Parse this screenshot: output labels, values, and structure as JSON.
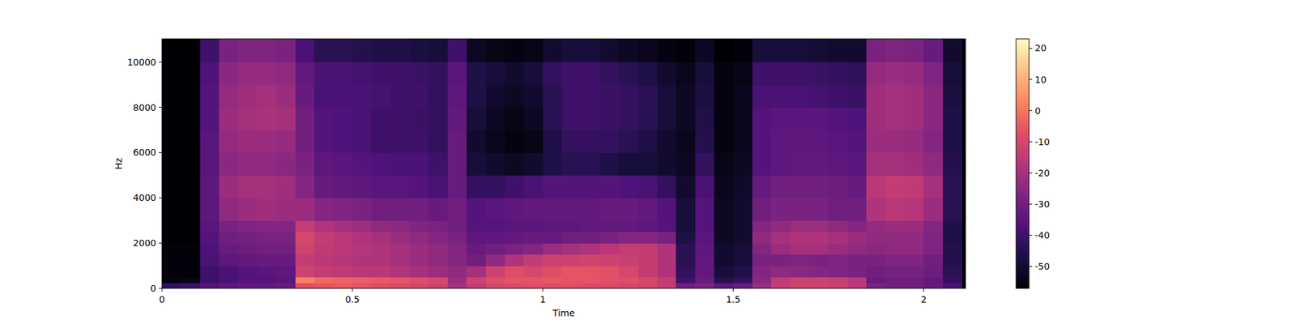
{
  "chart_data": {
    "type": "heatmap",
    "x_label": "Time",
    "y_label": "Hz",
    "xlim": [
      0,
      2.11
    ],
    "xticks": [
      0,
      0.5,
      1,
      1.5,
      2
    ],
    "ylim": [
      0,
      11025
    ],
    "yticks": [
      0,
      2000,
      4000,
      6000,
      8000,
      10000
    ],
    "x_bins": [
      0,
      0.05,
      0.1,
      0.15,
      0.2,
      0.25,
      0.3,
      0.35,
      0.4,
      0.45,
      0.5,
      0.55,
      0.6,
      0.65,
      0.7,
      0.75,
      0.8,
      0.85,
      0.9,
      0.95,
      1,
      1.05,
      1.1,
      1.15,
      1.2,
      1.25,
      1.3,
      1.35,
      1.4,
      1.45,
      1.5,
      1.55,
      1.6,
      1.65,
      1.7,
      1.75,
      1.8,
      1.85,
      1.9,
      1.95,
      2,
      2.05,
      2.1
    ],
    "y_bins": [
      0,
      250,
      500,
      1000,
      1500,
      2000,
      2500,
      3000,
      4000,
      5000,
      6000,
      7000,
      8000,
      9000,
      10000,
      11025
    ],
    "colorbar_range": [
      -57,
      23
    ],
    "colorbar_ticks": [
      -50,
      -40,
      -30,
      -20,
      -10,
      0,
      10,
      20
    ],
    "values": [
      [
        -42,
        -40,
        -36,
        -34,
        -33,
        -33,
        -32,
        -8,
        -6,
        -5,
        -6,
        -8,
        -9,
        -10,
        -12,
        -20,
        -14,
        -10,
        -9,
        -8,
        -8,
        -8,
        -9,
        -9,
        -10,
        -11,
        -14,
        -30,
        -28,
        -34,
        -32,
        -22,
        -14,
        -12,
        -12,
        -13,
        -16,
        -28,
        -30,
        -30,
        -32,
        -38
      ],
      [
        -55,
        -54,
        -40,
        -38,
        -36,
        -36,
        -35,
        2,
        -2,
        -3,
        -4,
        -5,
        -6,
        -8,
        -10,
        -22,
        -12,
        -8,
        -6,
        -6,
        -5,
        -6,
        -6,
        -7,
        -8,
        -10,
        -14,
        -40,
        -32,
        -45,
        -42,
        -25,
        -15,
        -12,
        -12,
        -13,
        -16,
        -32,
        -31,
        -31,
        -33,
        -42
      ],
      [
        -56,
        -56,
        -40,
        -38,
        -36,
        -35,
        -34,
        -12,
        -14,
        -15,
        -16,
        -16,
        -18,
        -20,
        -22,
        -24,
        -20,
        -12,
        -8,
        -10,
        -8,
        -6,
        -6,
        -7,
        -10,
        -14,
        -18,
        -42,
        -33,
        -48,
        -46,
        -26,
        -24,
        -25,
        -26,
        -27,
        -28,
        -30,
        -29,
        -29,
        -31,
        -44
      ],
      [
        -56,
        -56,
        -38,
        -34,
        -33,
        -32,
        -32,
        -14,
        -16,
        -17,
        -18,
        -18,
        -20,
        -22,
        -24,
        -26,
        -30,
        -24,
        -18,
        -14,
        -12,
        -12,
        -11,
        -12,
        -13,
        -14,
        -18,
        -44,
        -33,
        -50,
        -48,
        -28,
        -28,
        -27,
        -28,
        -27,
        -28,
        -28,
        -27,
        -27,
        -30,
        -45
      ],
      [
        -56,
        -56,
        -37,
        -32,
        -31,
        -30,
        -30,
        -12,
        -15,
        -16,
        -17,
        -18,
        -20,
        -22,
        -24,
        -26,
        -32,
        -30,
        -28,
        -26,
        -22,
        -20,
        -18,
        -16,
        -14,
        -14,
        -18,
        -44,
        -34,
        -50,
        -48,
        -26,
        -22,
        -20,
        -20,
        -22,
        -24,
        -25,
        -24,
        -24,
        -27,
        -45
      ],
      [
        -57,
        -57,
        -36,
        -30,
        -29,
        -28,
        -28,
        -10,
        -14,
        -16,
        -18,
        -20,
        -22,
        -24,
        -26,
        -28,
        -34,
        -34,
        -33,
        -32,
        -32,
        -30,
        -30,
        -28,
        -26,
        -26,
        -28,
        -46,
        -35,
        -52,
        -50,
        -24,
        -20,
        -18,
        -18,
        -20,
        -22,
        -24,
        -24,
        -24,
        -27,
        -46
      ],
      [
        -57,
        -57,
        -35,
        -28,
        -27,
        -26,
        -26,
        -14,
        -18,
        -20,
        -22,
        -24,
        -25,
        -27,
        -28,
        -30,
        -36,
        -36,
        -35,
        -35,
        -34,
        -34,
        -33,
        -33,
        -33,
        -34,
        -36,
        -48,
        -36,
        -52,
        -50,
        -26,
        -24,
        -22,
        -22,
        -24,
        -26,
        -23,
        -22,
        -22,
        -26,
        -46
      ],
      [
        -57,
        -57,
        -34,
        -24,
        -22,
        -21,
        -22,
        -22,
        -26,
        -27,
        -28,
        -30,
        -30,
        -30,
        -32,
        -30,
        -36,
        -35,
        -34,
        -33,
        -33,
        -33,
        -33,
        -32,
        -32,
        -33,
        -36,
        -48,
        -36,
        -52,
        -50,
        -30,
        -28,
        -28,
        -28,
        -30,
        -30,
        -18,
        -16,
        -17,
        -22,
        -44
      ],
      [
        -57,
        -57,
        -34,
        -22,
        -20,
        -20,
        -21,
        -26,
        -32,
        -33,
        -34,
        -35,
        -35,
        -36,
        -38,
        -32,
        -42,
        -42,
        -40,
        -38,
        -36,
        -36,
        -36,
        -36,
        -37,
        -38,
        -42,
        -50,
        -38,
        -53,
        -51,
        -32,
        -30,
        -30,
        -30,
        -31,
        -32,
        -16,
        -14,
        -15,
        -20,
        -44
      ],
      [
        -57,
        -57,
        -35,
        -25,
        -24,
        -24,
        -25,
        -28,
        -34,
        -35,
        -36,
        -37,
        -38,
        -38,
        -40,
        -32,
        -48,
        -50,
        -52,
        -50,
        -46,
        -44,
        -44,
        -46,
        -48,
        -48,
        -50,
        -52,
        -42,
        -54,
        -52,
        -36,
        -34,
        -33,
        -33,
        -34,
        -35,
        -20,
        -20,
        -21,
        -24,
        -45
      ],
      [
        -57,
        -57,
        -35,
        -23,
        -22,
        -22,
        -23,
        -30,
        -36,
        -37,
        -38,
        -40,
        -40,
        -40,
        -42,
        -32,
        -50,
        -53,
        -55,
        -54,
        -46,
        -42,
        -42,
        -42,
        -44,
        -46,
        -50,
        -53,
        -45,
        -55,
        -53,
        -36,
        -34,
        -34,
        -34,
        -35,
        -36,
        -22,
        -22,
        -23,
        -26,
        -46
      ],
      [
        -57,
        -57,
        -36,
        -22,
        -20,
        -19,
        -20,
        -30,
        -36,
        -37,
        -38,
        -40,
        -40,
        -41,
        -42,
        -33,
        -48,
        -52,
        -54,
        -52,
        -44,
        -40,
        -40,
        -41,
        -42,
        -44,
        -48,
        -52,
        -46,
        -55,
        -53,
        -36,
        -35,
        -35,
        -35,
        -36,
        -37,
        -21,
        -20,
        -21,
        -25,
        -46
      ],
      [
        -57,
        -57,
        -36,
        -23,
        -21,
        -20,
        -22,
        -32,
        -38,
        -38,
        -38,
        -39,
        -40,
        -40,
        -42,
        -34,
        -46,
        -50,
        -52,
        -50,
        -44,
        -40,
        -40,
        -41,
        -42,
        -44,
        -48,
        -52,
        -47,
        -55,
        -53,
        -38,
        -38,
        -38,
        -39,
        -40,
        -41,
        -21,
        -20,
        -21,
        -25,
        -47
      ],
      [
        -57,
        -57,
        -37,
        -25,
        -23,
        -23,
        -24,
        -33,
        -38,
        -38,
        -39,
        -40,
        -40,
        -41,
        -42,
        -35,
        -46,
        -48,
        -50,
        -48,
        -42,
        -40,
        -40,
        -42,
        -44,
        -46,
        -50,
        -53,
        -48,
        -55,
        -54,
        -40,
        -40,
        -40,
        -41,
        -42,
        -43,
        -23,
        -22,
        -23,
        -27,
        -48
      ],
      [
        -57,
        -57,
        -40,
        -28,
        -27,
        -27,
        -28,
        -38,
        -44,
        -44,
        -45,
        -46,
        -46,
        -47,
        -48,
        -40,
        -52,
        -54,
        -55,
        -54,
        -50,
        -48,
        -48,
        -50,
        -52,
        -53,
        -55,
        -56,
        -52,
        -57,
        -56,
        -48,
        -48,
        -48,
        -49,
        -50,
        -50,
        -28,
        -27,
        -28,
        -32,
        -50
      ]
    ]
  }
}
